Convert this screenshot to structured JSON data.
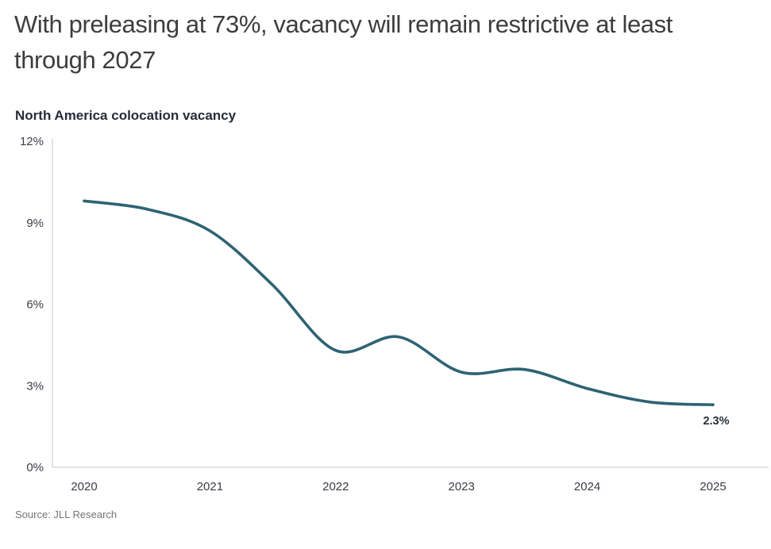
{
  "page": {
    "title": "With preleasing at 73%, vacancy will remain restrictive at least through 2027",
    "source": "Source: JLL Research"
  },
  "chart_data": {
    "type": "line",
    "title": "North America colocation vacancy",
    "x": [
      2020,
      2020.5,
      2021,
      2021.5,
      2022,
      2022.5,
      2023,
      2023.5,
      2024,
      2024.5,
      2025
    ],
    "values": [
      9.8,
      9.5,
      8.7,
      6.7,
      4.3,
      4.8,
      3.5,
      3.6,
      2.9,
      2.4,
      2.3
    ],
    "series_name": "North America colocation vacancy",
    "xlabel": "",
    "ylabel": "",
    "xlim": [
      2020,
      2025
    ],
    "ylim": [
      0,
      12
    ],
    "x_tick_values": [
      2020,
      2021,
      2022,
      2023,
      2024,
      2025
    ],
    "x_ticks": [
      "2020",
      "2021",
      "2022",
      "2023",
      "2024",
      "2025"
    ],
    "y_tick_values": [
      12,
      9,
      6,
      3,
      0
    ],
    "y_ticks": [
      "12%",
      "9%",
      "6%",
      "3%",
      "0%"
    ],
    "end_label": "2.3%",
    "grid": false,
    "legend": false,
    "colors": {
      "line": "#2e6374",
      "axis": "#d9d9d9",
      "tick_text": "#3a3d45",
      "end_label_text": "#2c2f38"
    }
  }
}
